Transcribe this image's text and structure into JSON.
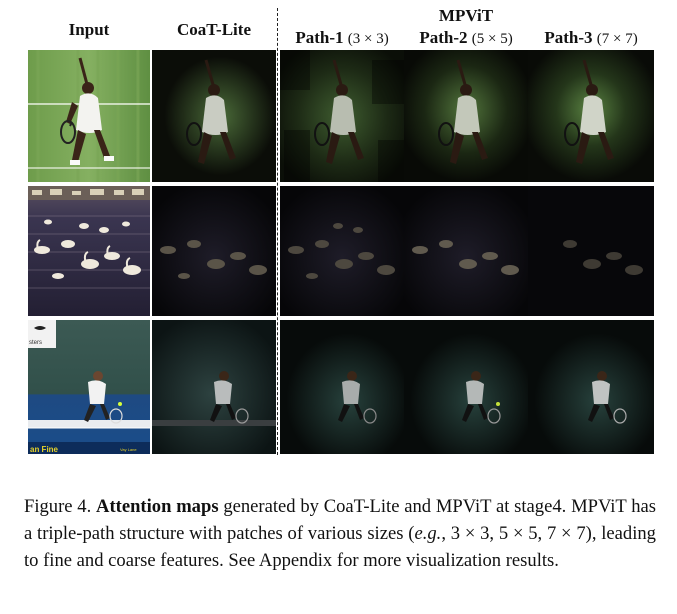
{
  "headers": {
    "input": "Input",
    "coat": "CoaT-Lite",
    "mpvit": "MPViT",
    "path1_name": "Path-1",
    "path1_kernel": "(3 × 3)",
    "path2_name": "Path-2",
    "path2_kernel": "(5 × 5)",
    "path3_name": "Path-3",
    "path3_kernel": "(7 × 7)"
  },
  "overlay_text": {
    "row3_logo_text": "sters",
    "row3_banner_text": "an Fine",
    "row3_small_text": "Vay Lane"
  },
  "caption": {
    "label": "Figure 4.",
    "bold": "Attention maps",
    "text1": " generated by CoaT-Lite and MPViT at stage4. MPViT has a triple-path structure with patches of various sizes (",
    "eg": "e.g.",
    "text2": ", 3 × 3, 5 × 5, 7 × 7), leading to fine and coarse features. See Appendix for more visualization results."
  },
  "colors": {
    "grass": "#5f8f42",
    "water": "#2e2a45",
    "court": "#2a5a8c",
    "curtain": "#3f5a52"
  }
}
